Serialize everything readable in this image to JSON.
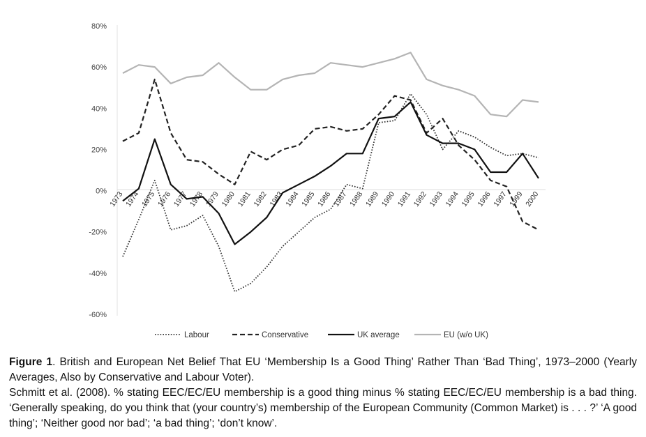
{
  "chart_data": {
    "type": "line",
    "title": "",
    "xlabel": "",
    "ylabel": "",
    "ylim": [
      -60,
      80
    ],
    "yticks": [
      80,
      60,
      40,
      20,
      0,
      -20,
      -40,
      -60
    ],
    "ytick_labels": [
      "80%",
      "60%",
      "40%",
      "20%",
      "0%",
      "-20%",
      "-40%",
      "-60%"
    ],
    "categories": [
      "1973",
      "1974",
      "1975",
      "1976",
      "1977",
      "1978",
      "1979",
      "1980",
      "1981",
      "1982",
      "1983",
      "1984",
      "1985",
      "1986",
      "1987",
      "1988",
      "1989",
      "1990",
      "1991",
      "1992",
      "1993",
      "1994",
      "1995",
      "1996",
      "1997",
      "1999",
      "2000"
    ],
    "grid": false,
    "legend_position": "bottom",
    "series": [
      {
        "name": "Labour",
        "style": "dotted",
        "color": "#333333",
        "values": [
          -32,
          -14,
          5,
          -19,
          -17,
          -12,
          -27,
          -49,
          -45,
          -37,
          -27,
          -20,
          -13,
          -9,
          3,
          1,
          33,
          34,
          47,
          37,
          20,
          29,
          26,
          21,
          17,
          18,
          16
        ]
      },
      {
        "name": "Conservative",
        "style": "dashed",
        "color": "#222222",
        "values": [
          24,
          28,
          54,
          28,
          15,
          14,
          8,
          3,
          19,
          15,
          20,
          22,
          30,
          31,
          29,
          30,
          37,
          46,
          44,
          28,
          35,
          22,
          15,
          5,
          2,
          -15,
          -19
        ]
      },
      {
        "name": "UK average",
        "style": "solid",
        "color": "#111111",
        "values": [
          -5,
          1,
          25,
          3,
          -4,
          -3,
          -11,
          -26,
          -20,
          -13,
          -1,
          3,
          7,
          12,
          18,
          18,
          35,
          36,
          43,
          27,
          23,
          23,
          20,
          9,
          9,
          18,
          6
        ]
      },
      {
        "name": "EU (w/o UK)",
        "style": "solid",
        "color": "#b4b4b4",
        "values": [
          57,
          61,
          60,
          52,
          55,
          56,
          62,
          55,
          49,
          49,
          54,
          56,
          57,
          62,
          61,
          60,
          62,
          64,
          67,
          54,
          51,
          49,
          46,
          37,
          36,
          44,
          43
        ]
      }
    ]
  },
  "caption": {
    "figure_label": "Figure 1",
    "title_text": ". British and European Net Belief That EU ‘Membership Is a Good Thing’ Rather Than ‘Bad Thing’, 1973–2000 (Yearly Averages, Also by Conservative and Labour Voter).",
    "source_text": "Schmitt et al. (2008). % stating EEC/EC/EU membership is a good thing minus % stating EEC/EC/EU membership is a bad thing. ‘Generally speaking, do you think that (your country’s) membership of the European Community (Common Market) is . . . ?’ ‘A good thing’; ‘Neither good nor bad’; ‘a bad thing’; ‘don’t know’."
  }
}
